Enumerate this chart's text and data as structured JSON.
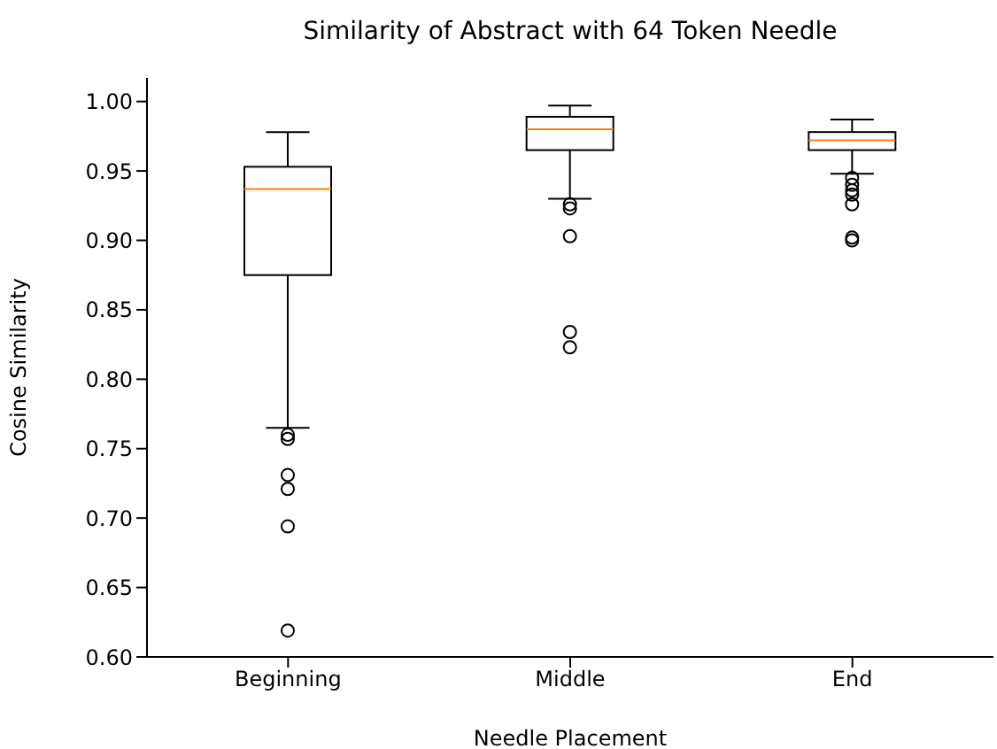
{
  "chart_data": {
    "type": "box",
    "title": "Similarity of Abstract with 64 Token Needle",
    "xlabel": "Needle Placement",
    "ylabel": "Cosine Similarity",
    "categories": [
      "Beginning",
      "Middle",
      "End"
    ],
    "boxes": [
      {
        "low": 0.765,
        "q1": 0.875,
        "median": 0.937,
        "q3": 0.953,
        "high": 0.978,
        "outliers": [
          0.76,
          0.757,
          0.731,
          0.721,
          0.694,
          0.619
        ]
      },
      {
        "low": 0.93,
        "q1": 0.965,
        "median": 0.98,
        "q3": 0.989,
        "high": 0.997,
        "outliers": [
          0.926,
          0.923,
          0.903,
          0.834,
          0.823
        ]
      },
      {
        "low": 0.948,
        "q1": 0.965,
        "median": 0.972,
        "q3": 0.978,
        "high": 0.987,
        "outliers": [
          0.945,
          0.94,
          0.936,
          0.933,
          0.926,
          0.902,
          0.9
        ]
      }
    ],
    "ylim": [
      0.6,
      1.017
    ],
    "yticks": [
      {
        "value": 0.6,
        "label": "0.60"
      },
      {
        "value": 0.65,
        "label": "0.65"
      },
      {
        "value": 0.7,
        "label": "0.70"
      },
      {
        "value": 0.75,
        "label": "0.75"
      },
      {
        "value": 0.8,
        "label": "0.80"
      },
      {
        "value": 0.85,
        "label": "0.85"
      },
      {
        "value": 0.9,
        "label": "0.90"
      },
      {
        "value": 0.95,
        "label": "0.95"
      },
      {
        "value": 1.0,
        "label": "1.00"
      }
    ]
  }
}
